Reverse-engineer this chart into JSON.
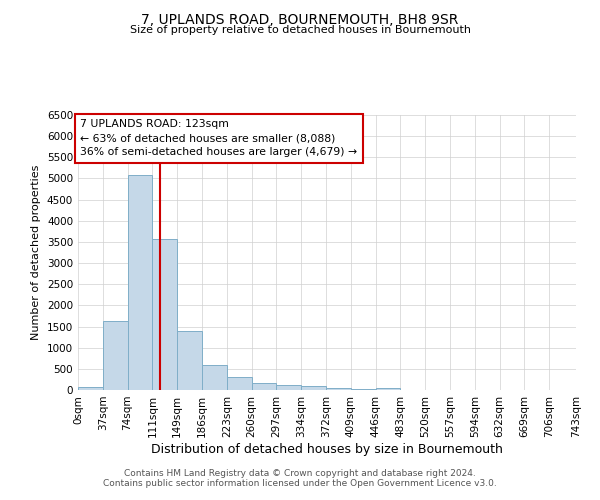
{
  "title": "7, UPLANDS ROAD, BOURNEMOUTH, BH8 9SR",
  "subtitle": "Size of property relative to detached houses in Bournemouth",
  "xlabel": "Distribution of detached houses by size in Bournemouth",
  "ylabel": "Number of detached properties",
  "footer_line1": "Contains HM Land Registry data © Crown copyright and database right 2024.",
  "footer_line2": "Contains public sector information licensed under the Open Government Licence v3.0.",
  "bin_edges": [
    0,
    37,
    74,
    111,
    148,
    185,
    222,
    259,
    296,
    333,
    370,
    407,
    444,
    481,
    518,
    555,
    592,
    629,
    666,
    703,
    743
  ],
  "bin_labels": [
    "0sqm",
    "37sqm",
    "74sqm",
    "111sqm",
    "149sqm",
    "186sqm",
    "223sqm",
    "260sqm",
    "297sqm",
    "334sqm",
    "372sqm",
    "409sqm",
    "446sqm",
    "483sqm",
    "520sqm",
    "557sqm",
    "594sqm",
    "632sqm",
    "669sqm",
    "706sqm",
    "743sqm"
  ],
  "bar_heights": [
    75,
    1625,
    5075,
    3575,
    1400,
    600,
    300,
    155,
    130,
    90,
    45,
    25,
    55,
    0,
    0,
    0,
    0,
    0,
    0,
    0
  ],
  "bar_color": "#c5d8e8",
  "bar_edgecolor": "#7faec8",
  "property_value": 123,
  "vline_color": "#cc0000",
  "annotation_line1": "7 UPLANDS ROAD: 123sqm",
  "annotation_line2": "← 63% of detached houses are smaller (8,088)",
  "annotation_line3": "36% of semi-detached houses are larger (4,679) →",
  "annotation_box_edgecolor": "#cc0000",
  "annotation_box_facecolor": "#ffffff",
  "ylim": [
    0,
    6500
  ],
  "yticks": [
    0,
    500,
    1000,
    1500,
    2000,
    2500,
    3000,
    3500,
    4000,
    4500,
    5000,
    5500,
    6000,
    6500
  ],
  "background_color": "#ffffff",
  "grid_color": "#d0d0d0"
}
